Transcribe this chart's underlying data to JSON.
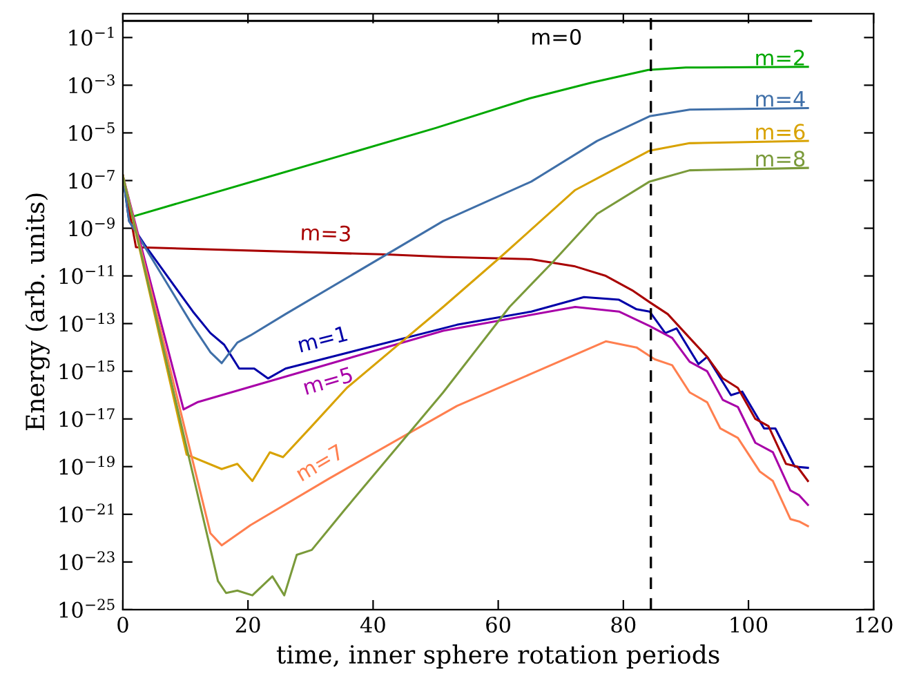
{
  "chart_data": {
    "type": "line",
    "xlabel": "time, inner sphere rotation periods",
    "ylabel": "Energy (arb. units)",
    "log": "y",
    "grid": false,
    "line_style": "solid",
    "marker": "none",
    "xlim": [
      0,
      120
    ],
    "xticks": [
      0,
      20,
      40,
      60,
      80,
      100,
      120
    ],
    "ylim": [
      1e-25,
      1
    ],
    "yticks": [
      {
        "value": 1e-25,
        "label": "10$^{−25}$"
      },
      {
        "value": 1e-23,
        "label": "10$^{−23}$"
      },
      {
        "value": 1e-21,
        "label": "10$^{−21}$"
      },
      {
        "value": 1e-19,
        "label": "10$^{−19}$"
      },
      {
        "value": 1e-17,
        "label": "10$^{−17}$"
      },
      {
        "value": 1e-15,
        "label": "10$^{−15}$"
      },
      {
        "value": 1e-13,
        "label": "10$^{−13}$"
      },
      {
        "value": 1e-11,
        "label": "10$^{−11}$"
      },
      {
        "value": 1e-09,
        "label": "10$^{−9}$"
      },
      {
        "value": 1e-07,
        "label": "10$^{−7}$"
      },
      {
        "value": 1e-05,
        "label": "10$^{−5}$"
      },
      {
        "value": 0.001,
        "label": "10$^{−3}$"
      },
      {
        "value": 0.1,
        "label": "10$^{−1}$"
      }
    ],
    "ref_lines": [
      {
        "axis": "x",
        "value": 84.4,
        "color": "#000000",
        "line_style": "dashed"
      }
    ],
    "series": [
      {
        "name": "m=0",
        "color": "#000000",
        "x": [
          0,
          110
        ],
        "values": [
          0.5,
          0.5
        ]
      },
      {
        "name": "m=1",
        "color": "#0000a8",
        "x": [
          0,
          1,
          3.5,
          11.2,
          14,
          16.2,
          18.6,
          21,
          23.2,
          26,
          53.4,
          65.3,
          73.7,
          79.3,
          82.1,
          84.2,
          86.7,
          88.5,
          92,
          93.4,
          97.2,
          99,
          102.5,
          104.3,
          107.4,
          109.5
        ],
        "values": [
          1.6e-07,
          2e-09,
          2e-10,
          3.2e-13,
          4e-14,
          1.3e-14,
          1.3e-15,
          1.3e-15,
          5e-16,
          1.3e-15,
          8.9e-14,
          3.2e-13,
          1.3e-12,
          1e-12,
          4e-13,
          3.2e-13,
          4e-14,
          6.3e-14,
          2e-15,
          4e-15,
          1e-16,
          1.4e-16,
          4e-18,
          4e-18,
          1e-19,
          8.9e-20
        ]
      },
      {
        "name": "m=2",
        "color": "#00a800",
        "x": [
          0,
          1,
          50,
          65,
          75,
          84,
          90,
          109.5
        ],
        "values": [
          1.6e-07,
          2.8e-09,
          1.6e-05,
          0.00028,
          0.0013,
          0.0044,
          0.0055,
          0.0059
        ]
      },
      {
        "name": "m=3",
        "color": "#a80000",
        "x": [
          0,
          2.1,
          42.2,
          51.2,
          65.3,
          72.3,
          77.2,
          81.4,
          84.2,
          87.1,
          90.6,
          93.4,
          95.9,
          98.3,
          101.1,
          103.2,
          106,
          107.8,
          109.5
        ],
        "values": [
          1.6e-07,
          1.6e-10,
          7.9e-11,
          6.3e-11,
          5e-11,
          2.5e-11,
          1e-11,
          2.5e-12,
          7.9e-13,
          2.5e-13,
          2.5e-14,
          4e-15,
          5e-16,
          2e-16,
          1e-17,
          5e-18,
          1.3e-19,
          1e-19,
          2.5e-20
        ]
      },
      {
        "name": "m=4",
        "color": "#3f6fa8",
        "x": [
          0,
          1,
          11.2,
          14,
          15.8,
          18.3,
          20.4,
          26,
          51.2,
          65.3,
          75.8,
          84.2,
          90.6,
          109.5
        ],
        "values": [
          1.6e-07,
          2e-09,
          7.9e-14,
          6.3e-15,
          2.2e-15,
          1.6e-14,
          3.2e-14,
          2.5e-13,
          2e-09,
          9.1e-08,
          4.6e-06,
          5e-05,
          9.5e-05,
          0.00011
        ]
      },
      {
        "name": "m=5",
        "color": "#a800a8",
        "x": [
          0,
          9.7,
          11.9,
          51.2,
          72.3,
          79.3,
          84.2,
          87.8,
          90.6,
          93.4,
          95.9,
          98.3,
          101.1,
          103.9,
          106.7,
          108.1,
          109.5
        ],
        "values": [
          1.6e-07,
          2.5e-17,
          5e-17,
          5e-14,
          5e-13,
          3.2e-13,
          7.9e-14,
          2.5e-14,
          2.5e-15,
          1e-15,
          6.3e-17,
          3.2e-17,
          1e-18,
          4e-19,
          1e-20,
          6.3e-21,
          2.5e-21
        ]
      },
      {
        "name": "m=6",
        "color": "#d8a200",
        "x": [
          0,
          10.2,
          15.8,
          18.3,
          20.7,
          23.5,
          25.6,
          30.2,
          35.8,
          51.2,
          60.4,
          72.3,
          84.2,
          90.6,
          109.5
        ],
        "values": [
          1.6e-07,
          3.2e-19,
          7.9e-20,
          1.3e-19,
          2.5e-20,
          4e-19,
          2.5e-19,
          5e-18,
          2e-16,
          5e-13,
          6.3e-11,
          4e-08,
          1.8e-06,
          3.7e-06,
          4.6e-06
        ]
      },
      {
        "name": "m=7",
        "color": "#ff7f4f",
        "x": [
          0,
          14,
          15.8,
          20.4,
          33,
          53.4,
          65.3,
          77.2,
          82.1,
          85,
          87.8,
          90.6,
          93.4,
          95.5,
          98.3,
          101.8,
          103.9,
          106.7,
          108.1,
          109.5
        ],
        "values": [
          1.6e-07,
          1.6e-22,
          5e-23,
          3.5e-22,
          3.2e-20,
          3.5e-17,
          7.9e-16,
          1.8e-14,
          1e-14,
          3.2e-15,
          1.8e-15,
          1.3e-16,
          5e-17,
          4e-18,
          1.6e-18,
          6.3e-20,
          2.5e-20,
          6.3e-22,
          5e-22,
          3.2e-22
        ]
      },
      {
        "name": "m=8",
        "color": "#7a9a3a",
        "x": [
          0,
          15.2,
          16.5,
          18.3,
          20.7,
          23.9,
          25.8,
          27.8,
          30.2,
          35.5,
          51.2,
          61.8,
          68.8,
          75.8,
          84.2,
          90.6,
          109.5
        ],
        "values": [
          1.6e-07,
          1.6e-24,
          5e-25,
          6.3e-25,
          4e-25,
          2.5e-24,
          4e-25,
          2e-23,
          3.2e-23,
          1.6e-21,
          1.3e-16,
          5e-13,
          4e-11,
          4e-09,
          9.1e-08,
          2.7e-07,
          3.4e-07
        ]
      }
    ]
  }
}
